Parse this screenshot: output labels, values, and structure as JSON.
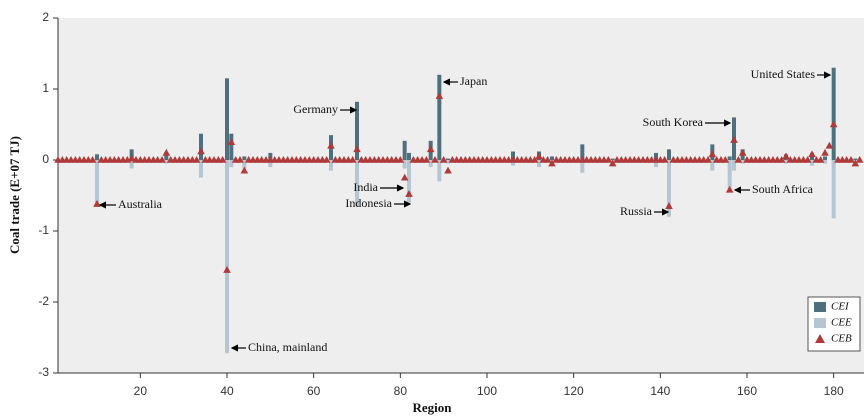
{
  "chart_data": {
    "type": "bar",
    "xlabel": "Region",
    "ylabel": "Coal trade (E+07 TJ)",
    "xlim": [
      1,
      187
    ],
    "ylim": [
      -3,
      2
    ],
    "xticks": [
      20,
      40,
      60,
      80,
      100,
      120,
      140,
      160,
      180
    ],
    "yticks": [
      -3,
      -2,
      -1,
      0,
      1,
      2
    ],
    "legend": "lower right",
    "series": [
      {
        "name": "CEI",
        "color": "#4e6f7e",
        "kind": "bar",
        "x": [
          10,
          18,
          26,
          34,
          40,
          41,
          44,
          50,
          64,
          70,
          81,
          82,
          87,
          89,
          91,
          106,
          112,
          115,
          122,
          129,
          139,
          142,
          152,
          156,
          157,
          159,
          169,
          175,
          178,
          180,
          185
        ],
        "values": [
          0.08,
          0.15,
          0.1,
          0.37,
          1.15,
          0.37,
          0.05,
          0.1,
          0.35,
          0.82,
          0.27,
          0.1,
          0.27,
          1.2,
          0.02,
          0.12,
          0.12,
          0.05,
          0.22,
          0.02,
          0.1,
          0.15,
          0.22,
          0.05,
          0.6,
          0.15,
          0.08,
          0.1,
          0.05,
          1.3,
          0.02
        ]
      },
      {
        "name": "CEE",
        "color": "#b5c5d1",
        "kind": "bar",
        "x": [
          10,
          18,
          26,
          34,
          40,
          41,
          44,
          50,
          64,
          70,
          81,
          82,
          87,
          89,
          91,
          106,
          112,
          115,
          122,
          129,
          139,
          142,
          152,
          156,
          157,
          159,
          169,
          175,
          178,
          180,
          185
        ],
        "values": [
          -0.65,
          -0.12,
          -0.05,
          -0.25,
          -2.72,
          -0.1,
          -0.12,
          -0.1,
          -0.15,
          -0.65,
          -0.12,
          -0.6,
          -0.1,
          -0.3,
          -0.05,
          -0.08,
          -0.1,
          -0.05,
          -0.18,
          -0.03,
          -0.1,
          -0.8,
          -0.15,
          -0.45,
          -0.15,
          -0.05,
          -0.05,
          -0.08,
          -0.05,
          -0.82,
          -0.02
        ]
      },
      {
        "name": "CEB",
        "color": "#b03a3a",
        "kind": "triangle",
        "x": [
          1,
          2,
          3,
          4,
          5,
          6,
          7,
          8,
          9,
          10,
          11,
          12,
          13,
          14,
          15,
          16,
          17,
          18,
          19,
          20,
          21,
          22,
          23,
          24,
          25,
          26,
          27,
          28,
          29,
          30,
          31,
          32,
          33,
          34,
          35,
          36,
          37,
          38,
          39,
          40,
          41,
          42,
          43,
          44,
          45,
          46,
          47,
          48,
          49,
          50,
          51,
          52,
          53,
          54,
          55,
          56,
          57,
          58,
          59,
          60,
          61,
          62,
          63,
          64,
          65,
          66,
          67,
          68,
          69,
          70,
          71,
          72,
          73,
          74,
          75,
          76,
          77,
          78,
          79,
          80,
          81,
          82,
          83,
          84,
          85,
          86,
          87,
          88,
          89,
          90,
          91,
          92,
          93,
          94,
          95,
          96,
          97,
          98,
          99,
          100,
          101,
          102,
          103,
          104,
          105,
          106,
          107,
          108,
          109,
          110,
          111,
          112,
          113,
          114,
          115,
          116,
          117,
          118,
          119,
          120,
          121,
          122,
          123,
          124,
          125,
          126,
          127,
          128,
          129,
          130,
          131,
          132,
          133,
          134,
          135,
          136,
          137,
          138,
          139,
          140,
          141,
          142,
          143,
          144,
          145,
          146,
          147,
          148,
          149,
          150,
          151,
          152,
          153,
          154,
          155,
          156,
          157,
          158,
          159,
          160,
          161,
          162,
          163,
          164,
          165,
          166,
          167,
          168,
          169,
          170,
          171,
          172,
          173,
          174,
          175,
          176,
          177,
          178,
          179,
          180,
          181,
          182,
          183,
          184,
          185,
          186
        ],
        "values": [
          0,
          0,
          0,
          0,
          0,
          0,
          0,
          0,
          0,
          -0.62,
          0,
          0,
          0,
          0,
          0,
          0,
          0,
          0.02,
          0,
          0,
          0,
          0,
          0,
          0,
          0,
          0.1,
          0,
          0,
          0,
          0,
          0,
          0,
          0,
          0.12,
          0,
          0,
          0,
          0,
          0,
          -1.55,
          0.25,
          0,
          0,
          -0.15,
          0,
          0,
          0,
          0,
          0,
          0,
          0,
          0,
          0,
          0,
          0,
          0,
          0,
          0,
          0,
          0,
          0,
          0,
          0,
          0.2,
          0,
          0,
          0,
          0,
          0,
          0.15,
          0,
          0,
          0,
          0,
          0,
          0,
          0,
          0,
          0,
          0,
          -0.25,
          -0.48,
          0,
          0,
          0,
          0,
          0.15,
          0,
          0.9,
          0,
          -0.15,
          0,
          0,
          0,
          0,
          0,
          0,
          0,
          0,
          0,
          0,
          0,
          0,
          0,
          0,
          0,
          0,
          0,
          0,
          0,
          0,
          0.05,
          0,
          0,
          -0.05,
          0,
          0,
          0,
          0,
          0,
          0,
          0,
          0,
          0,
          0,
          0,
          0,
          0,
          -0.05,
          0,
          0,
          0,
          0,
          0,
          0,
          0,
          0,
          0,
          0,
          0,
          0,
          -0.65,
          0,
          0,
          0,
          0,
          0,
          0,
          0,
          0,
          0,
          0.08,
          0,
          0,
          0,
          -0.42,
          0.28,
          0,
          0.1,
          0,
          0,
          0,
          0,
          0,
          0,
          0,
          0,
          0,
          0.05,
          0,
          0,
          0,
          0,
          0,
          0.08,
          0,
          0,
          0.1,
          0.2,
          0.5,
          0,
          0,
          0,
          0,
          -0.05,
          0
        ]
      }
    ],
    "annotations": [
      "Australia",
      "China, mainland",
      "Germany",
      "Japan",
      "India",
      "Indonesia",
      "South Korea",
      "South Africa",
      "Russia",
      "United States"
    ]
  }
}
